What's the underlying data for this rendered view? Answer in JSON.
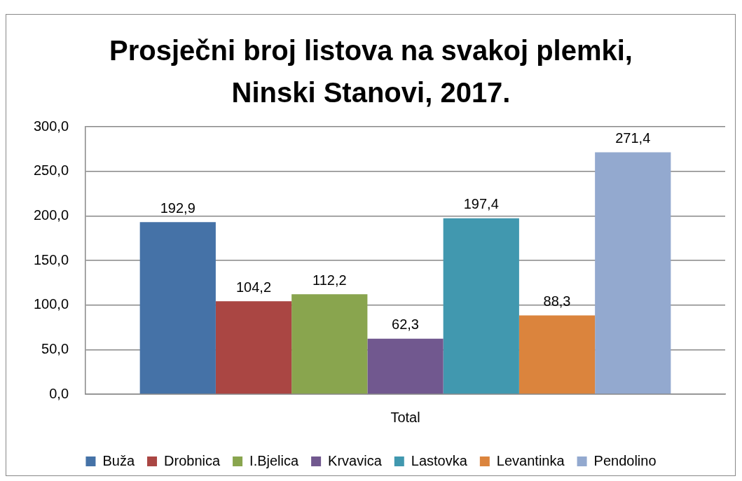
{
  "chart_data": {
    "type": "bar",
    "title": "Prosječni broj listova na svakoj plemki, Ninski Stanovi, 2017.",
    "categories": [
      "Total"
    ],
    "series": [
      {
        "name": "Buža",
        "color": "#4572a7",
        "values": [
          192.9
        ],
        "value_labels": [
          "192,9"
        ]
      },
      {
        "name": "Drobnica",
        "color": "#aa4643",
        "values": [
          104.2
        ],
        "value_labels": [
          "104,2"
        ]
      },
      {
        "name": "I.Bjelica",
        "color": "#89a54e",
        "values": [
          112.2
        ],
        "value_labels": [
          "112,2"
        ]
      },
      {
        "name": "Krvavica",
        "color": "#71588f",
        "values": [
          62.3
        ],
        "value_labels": [
          "62,3"
        ]
      },
      {
        "name": "Lastovka",
        "color": "#4198af",
        "values": [
          197.4
        ],
        "value_labels": [
          "197,4"
        ]
      },
      {
        "name": "Levantinka",
        "color": "#db843d",
        "values": [
          88.3
        ],
        "value_labels": [
          "88,3"
        ]
      },
      {
        "name": "Pendolino",
        "color": "#93a9cf",
        "values": [
          271.4
        ],
        "value_labels": [
          "271,4"
        ]
      }
    ],
    "ylim": [
      0,
      300
    ],
    "yticks": [
      {
        "value": 0,
        "label": "0,0"
      },
      {
        "value": 50,
        "label": "50,0"
      },
      {
        "value": 100,
        "label": "100,0"
      },
      {
        "value": 150,
        "label": "150,0"
      },
      {
        "value": 200,
        "label": "200,0"
      },
      {
        "value": 250,
        "label": "250,0"
      },
      {
        "value": 300,
        "label": "300,0"
      }
    ],
    "grid": "y",
    "legend": "bottom"
  }
}
